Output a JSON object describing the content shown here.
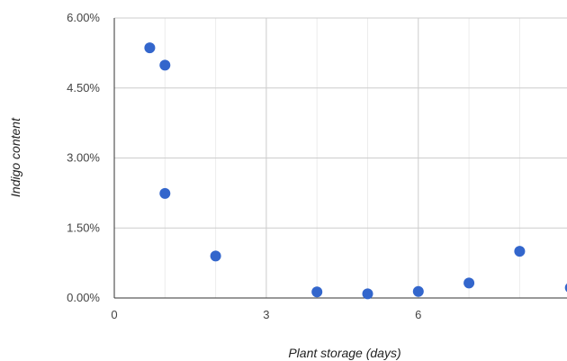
{
  "chart_data": {
    "type": "scatter",
    "title": "",
    "xlabel": "Plant storage (days)",
    "ylabel": "Indigo content",
    "xlim": [
      0,
      9
    ],
    "ylim": [
      0,
      0.06
    ],
    "x_ticks": [
      {
        "value": 0,
        "label": "0"
      },
      {
        "value": 3,
        "label": "3"
      },
      {
        "value": 6,
        "label": "6"
      }
    ],
    "y_ticks": [
      {
        "value": 0,
        "label": "0.00%"
      },
      {
        "value": 0.015,
        "label": "1.50%"
      },
      {
        "value": 0.03,
        "label": "3.00%"
      },
      {
        "value": 0.045,
        "label": "4.50%"
      },
      {
        "value": 0.06,
        "label": "6.00%"
      }
    ],
    "grid": true,
    "legend": "none",
    "point_color": "#3366cc",
    "points": [
      {
        "x": 0.7,
        "y": 0.0536
      },
      {
        "x": 1.0,
        "y": 0.0499
      },
      {
        "x": 1.0,
        "y": 0.0224
      },
      {
        "x": 2.0,
        "y": 0.009
      },
      {
        "x": 4.0,
        "y": 0.0013
      },
      {
        "x": 5.0,
        "y": 0.0009
      },
      {
        "x": 6.0,
        "y": 0.0014
      },
      {
        "x": 7.0,
        "y": 0.0032
      },
      {
        "x": 8.0,
        "y": 0.01
      },
      {
        "x": 9.0,
        "y": 0.0022
      }
    ]
  }
}
